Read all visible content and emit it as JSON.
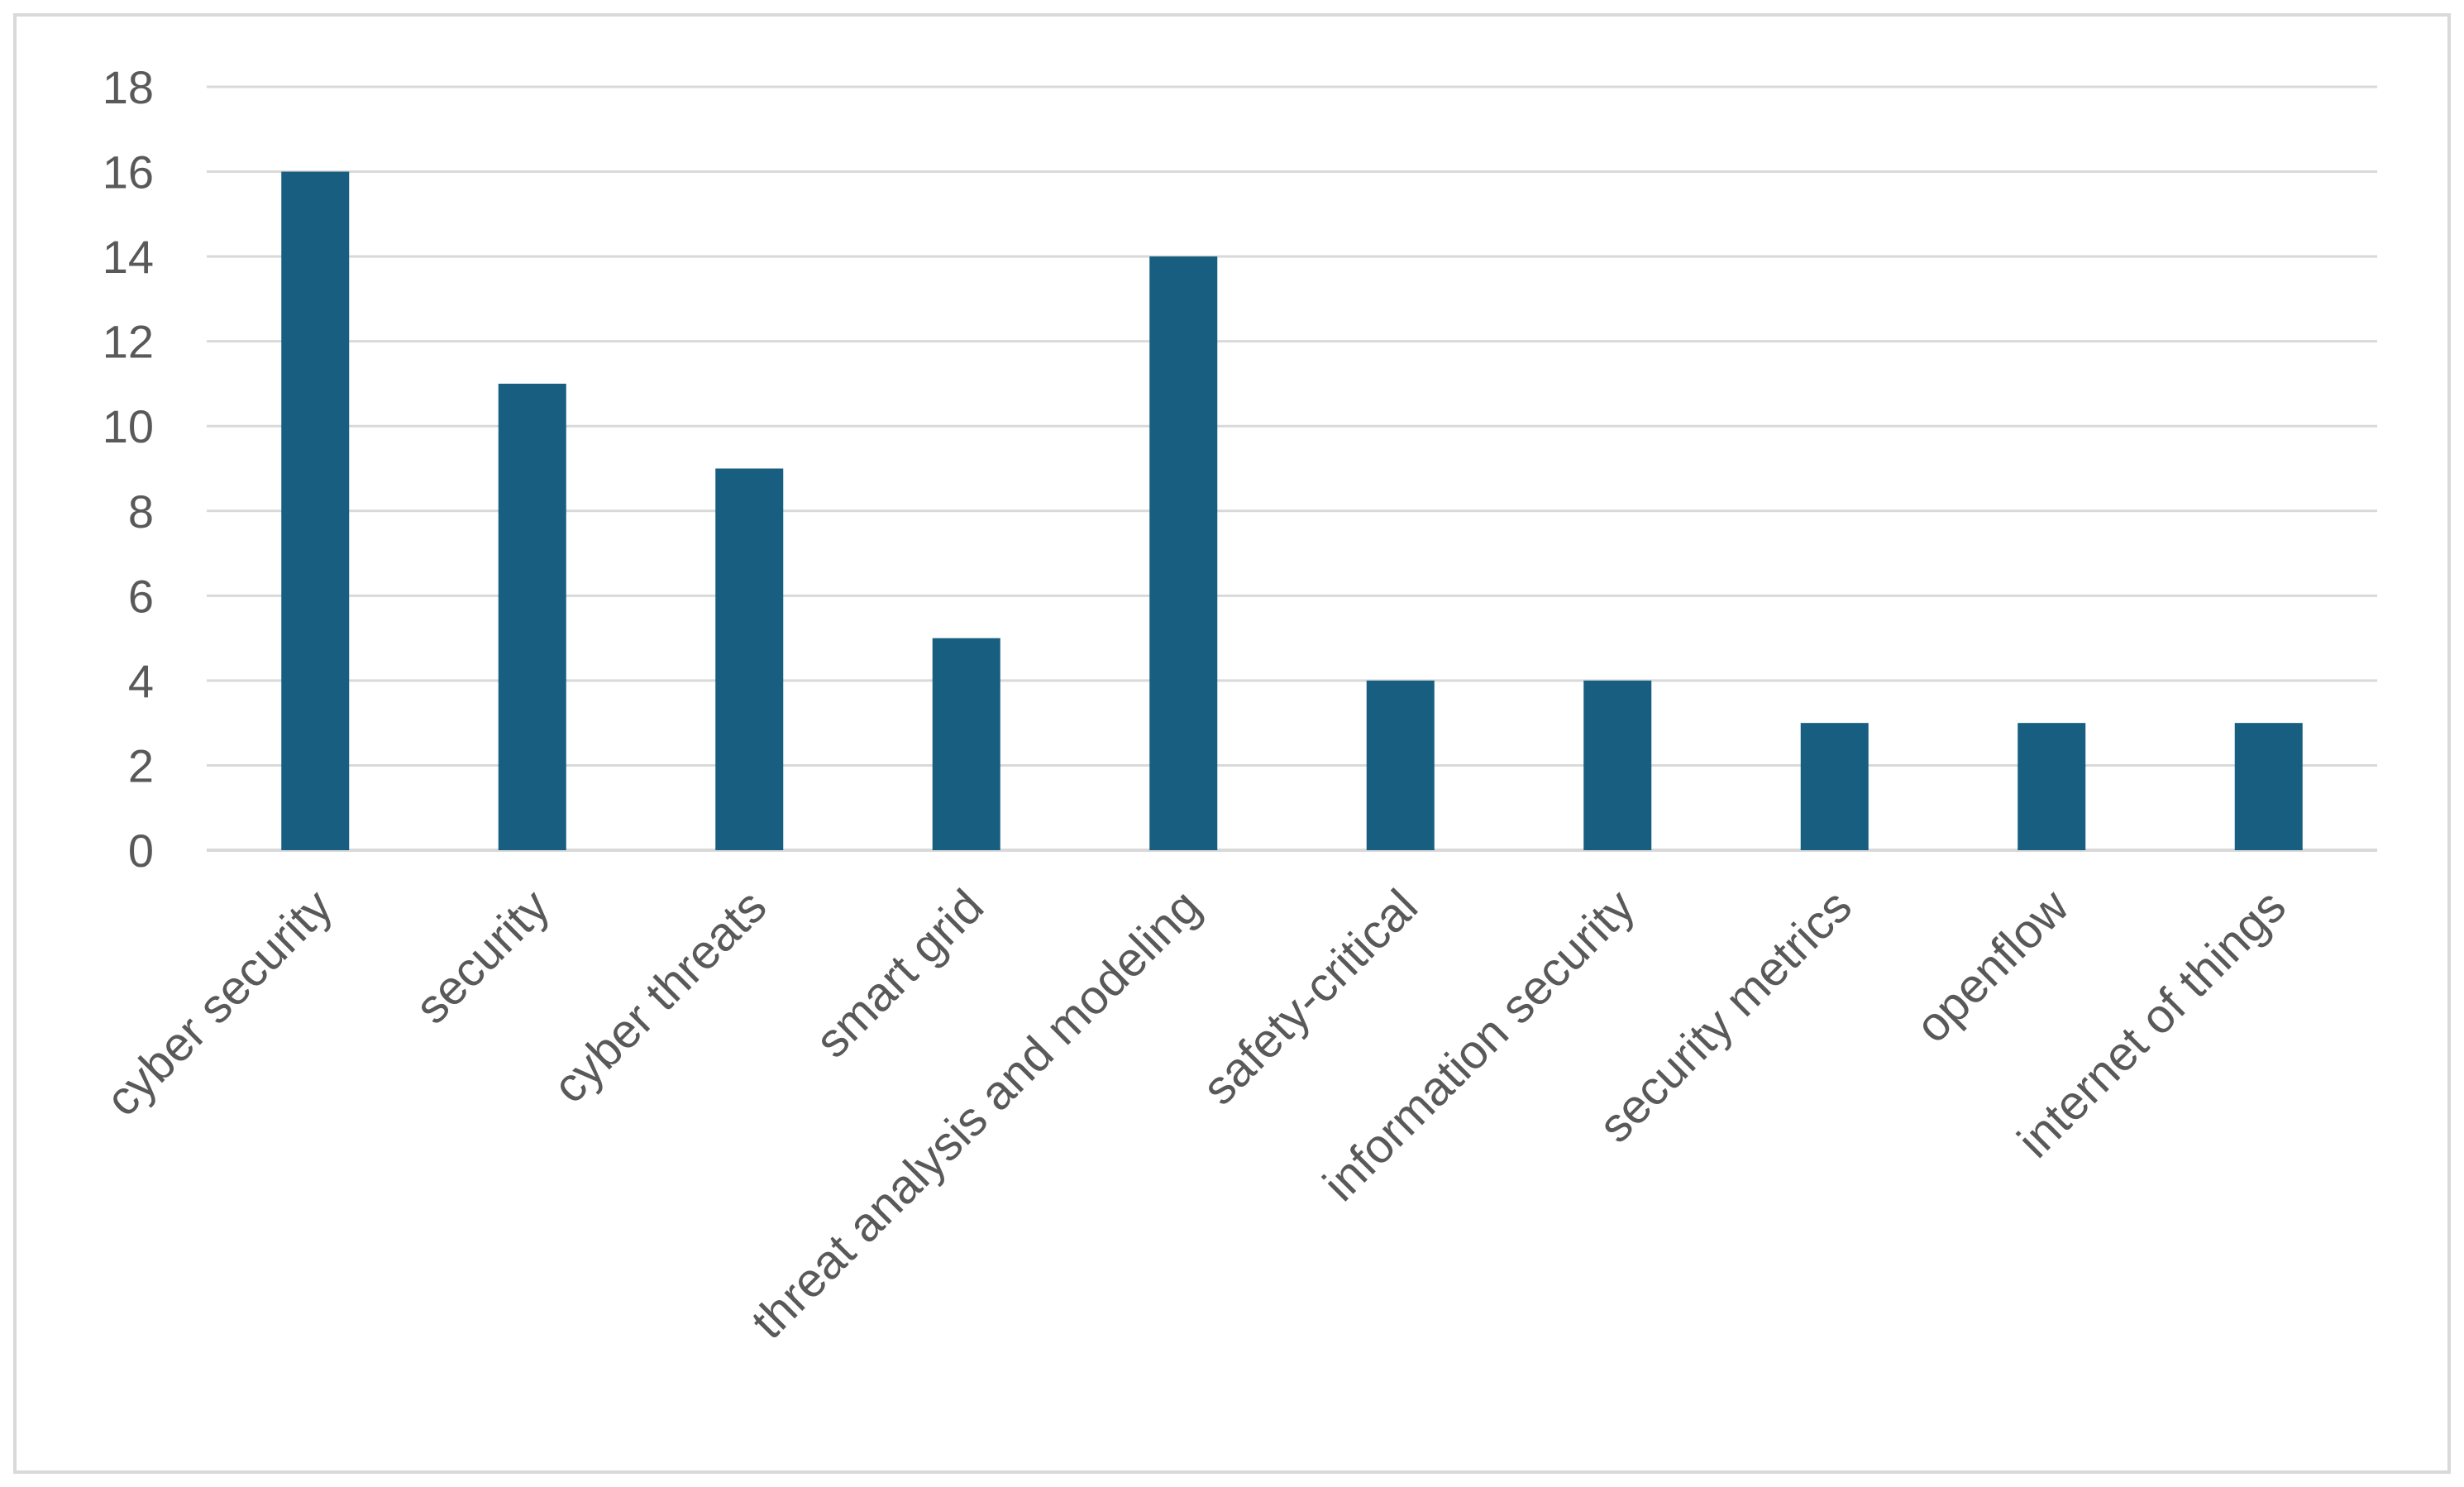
{
  "chart_data": {
    "type": "bar",
    "title": "",
    "xlabel": "",
    "ylabel": "",
    "categories": [
      "cyber security",
      "security",
      "cyber threats",
      "smart grid",
      "threat analysis and modeling",
      "safety-critical",
      "information security",
      "security metrics",
      "openflow",
      "internet of things"
    ],
    "series": [
      {
        "values": [
          16,
          11,
          9,
          5,
          14,
          4,
          4,
          3,
          3,
          3
        ]
      }
    ],
    "ylim": [
      0,
      18
    ],
    "yticks": [
      0,
      2,
      4,
      6,
      8,
      10,
      12,
      14,
      16,
      18
    ],
    "grid": true,
    "legend": "none",
    "colors": {
      "bar": "#175e80",
      "grid": "#d9d9d9",
      "text": "#595959",
      "frame": "#d9d9d9"
    }
  }
}
